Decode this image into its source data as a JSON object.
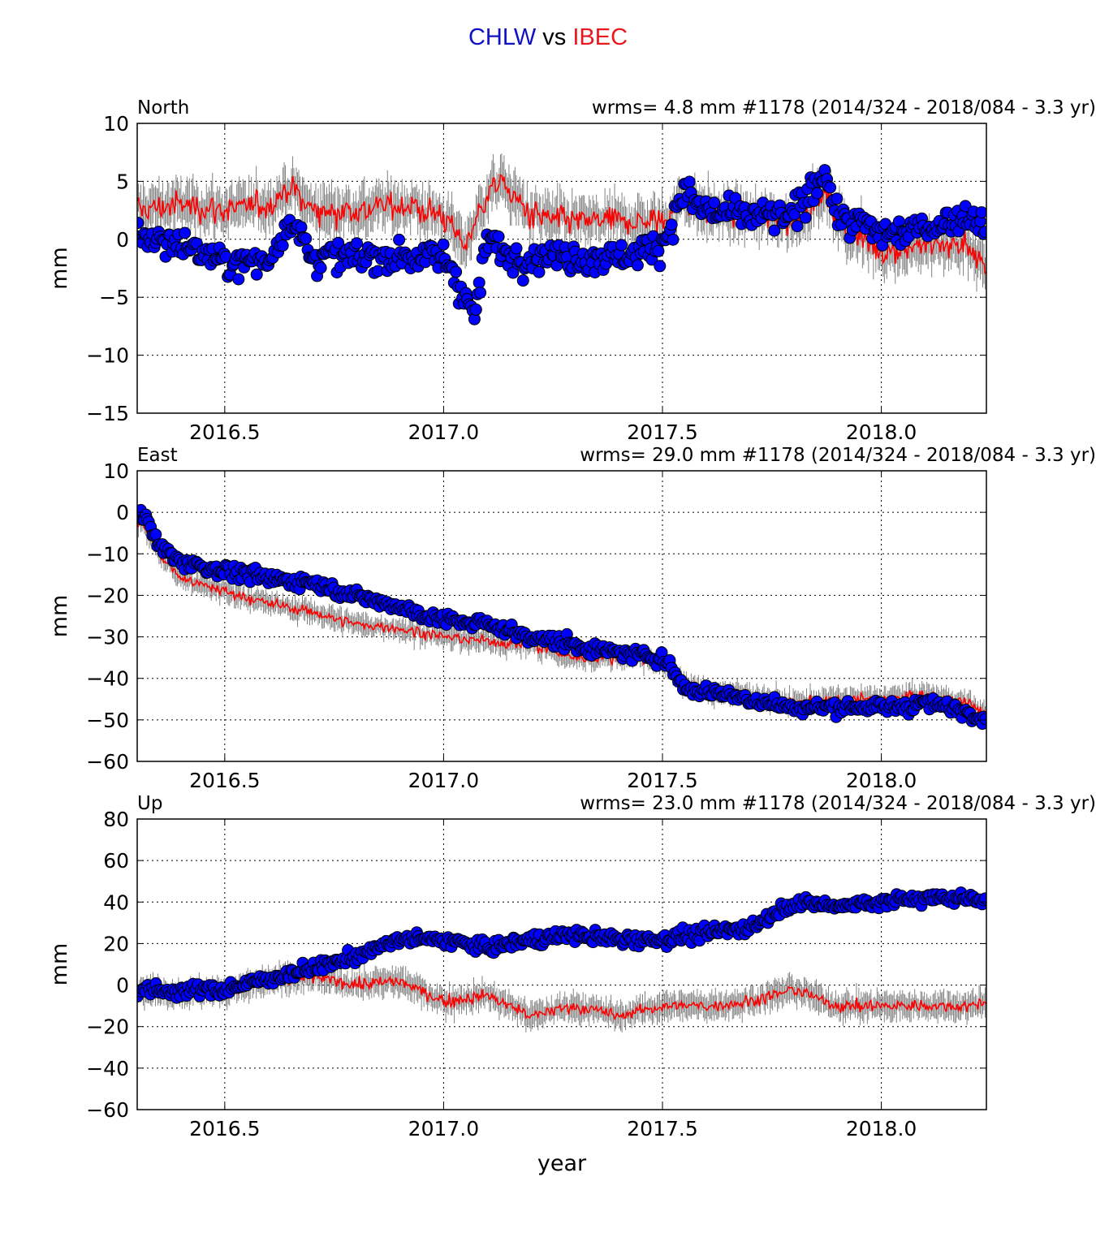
{
  "title": {
    "station1": "CHLW",
    "vs": "vs",
    "station2": "IBEC"
  },
  "colors": {
    "station1": "#0000ff",
    "station2": "#ff0000",
    "errorbar": "#808080",
    "edge": "#000000"
  },
  "chart_data": [
    {
      "type": "scatter",
      "panel": "North",
      "stats": "wrms=  4.8 mm  #1178 (2014/324 - 2018/084 -  3.3 yr)",
      "xlabel": "",
      "ylabel": "mm",
      "xlim": [
        2016.3,
        2018.24
      ],
      "ylim": [
        -15,
        10
      ],
      "xticks": [
        "2016.5",
        "2017.0",
        "2017.5",
        "2018.0"
      ],
      "yticks": [
        "10",
        "5",
        "0",
        "−5",
        "−10",
        "−15"
      ],
      "grid": true,
      "series": [
        {
          "x": [
            2016.3,
            2016.4,
            2016.5,
            2016.6,
            2016.65,
            2016.7,
            2016.8,
            2016.9,
            2017.0,
            2017.03,
            2017.05,
            2017.07,
            2017.1,
            2017.15,
            2017.2,
            2017.3,
            2017.4,
            2017.5,
            2017.55,
            2017.6,
            2017.7,
            2017.8,
            2017.87,
            2017.9,
            2018.0,
            2018.1,
            2018.2,
            2018.24
          ],
          "y": [
            0.5,
            -0.5,
            -2,
            -2,
            2,
            -1.5,
            -1.5,
            -1.5,
            -1.5,
            -3.5,
            -5,
            -6.5,
            0,
            -1.5,
            -1.5,
            -1.5,
            -1.5,
            -0.5,
            4,
            2.5,
            2,
            2,
            6,
            2,
            0.5,
            1,
            2,
            1
          ]
        },
        {
          "x": [
            2016.3,
            2016.4,
            2016.5,
            2016.6,
            2016.65,
            2016.7,
            2016.8,
            2016.9,
            2017.0,
            2017.05,
            2017.1,
            2017.13,
            2017.2,
            2017.3,
            2017.4,
            2017.5,
            2017.55,
            2017.6,
            2017.7,
            2017.8,
            2017.87,
            2017.9,
            2018.0,
            2018.1,
            2018.2,
            2018.24
          ],
          "y": [
            2.5,
            3,
            2.5,
            3,
            4.5,
            2.5,
            2.5,
            3,
            2,
            -0.5,
            4,
            5,
            2,
            1.5,
            1.5,
            1.5,
            3.5,
            2.5,
            2,
            1.5,
            4,
            1.5,
            -1,
            -0.5,
            -0.5,
            -3
          ]
        }
      ]
    },
    {
      "type": "scatter",
      "panel": "East",
      "stats": "wrms= 29.0 mm  #1178 (2014/324 - 2018/084 -  3.3 yr)",
      "xlabel": "",
      "ylabel": "mm",
      "xlim": [
        2016.3,
        2018.24
      ],
      "ylim": [
        -60,
        10
      ],
      "xticks": [
        "2016.5",
        "2017.0",
        "2017.5",
        "2018.0"
      ],
      "yticks": [
        "10",
        "0",
        "−10",
        "−20",
        "−30",
        "−40",
        "−50",
        "−60"
      ],
      "grid": true,
      "series": [
        {
          "x": [
            2016.31,
            2016.35,
            2016.4,
            2016.5,
            2016.6,
            2016.7,
            2016.8,
            2016.9,
            2017.0,
            2017.1,
            2017.2,
            2017.3,
            2017.4,
            2017.5,
            2017.56,
            2017.6,
            2017.7,
            2017.8,
            2017.9,
            2018.0,
            2018.1,
            2018.2,
            2018.24
          ],
          "y": [
            0,
            -8,
            -12,
            -14,
            -16,
            -17,
            -20,
            -23,
            -26,
            -27,
            -30,
            -32,
            -34,
            -35,
            -43,
            -43,
            -45,
            -47,
            -47,
            -47,
            -46,
            -48,
            -50
          ]
        },
        {
          "x": [
            2016.31,
            2016.35,
            2016.4,
            2016.5,
            2016.6,
            2016.7,
            2016.8,
            2016.9,
            2017.0,
            2017.1,
            2017.2,
            2017.3,
            2017.4,
            2017.5,
            2017.56,
            2017.6,
            2017.7,
            2017.8,
            2017.9,
            2018.0,
            2018.1,
            2018.2,
            2018.24
          ],
          "y": [
            -2,
            -10,
            -16,
            -19,
            -22,
            -24,
            -27,
            -28,
            -30,
            -31,
            -32,
            -35,
            -35,
            -36,
            -42,
            -43,
            -44,
            -46,
            -45,
            -45,
            -44,
            -46,
            -49
          ]
        }
      ]
    },
    {
      "type": "scatter",
      "panel": "Up",
      "stats": "wrms= 23.0 mm  #1178 (2014/324 - 2018/084 -  3.3 yr)",
      "xlabel": "year",
      "ylabel": "mm",
      "xlim": [
        2016.3,
        2018.24
      ],
      "ylim": [
        -60,
        80
      ],
      "xticks": [
        "2016.5",
        "2017.0",
        "2017.5",
        "2018.0"
      ],
      "yticks": [
        "80",
        "60",
        "40",
        "20",
        "0",
        "−20",
        "−40",
        "−60"
      ],
      "grid": true,
      "series": [
        {
          "x": [
            2016.3,
            2016.4,
            2016.5,
            2016.6,
            2016.7,
            2016.8,
            2016.9,
            2017.0,
            2017.1,
            2017.2,
            2017.3,
            2017.4,
            2017.5,
            2017.6,
            2017.7,
            2017.8,
            2017.9,
            2018.0,
            2018.1,
            2018.2,
            2018.24
          ],
          "y": [
            -2,
            -3,
            -2,
            3,
            8,
            14,
            22,
            22,
            18,
            22,
            24,
            22,
            22,
            25,
            28,
            40,
            38,
            40,
            42,
            42,
            42
          ]
        },
        {
          "x": [
            2016.3,
            2016.4,
            2016.5,
            2016.6,
            2016.7,
            2016.8,
            2016.9,
            2017.0,
            2017.1,
            2017.2,
            2017.3,
            2017.4,
            2017.5,
            2017.6,
            2017.7,
            2017.8,
            2017.9,
            2018.0,
            2018.1,
            2018.2,
            2018.24
          ],
          "y": [
            -2,
            -4,
            -3,
            2,
            4,
            0,
            2,
            -8,
            -5,
            -15,
            -10,
            -15,
            -10,
            -10,
            -8,
            -2,
            -10,
            -10,
            -10,
            -10,
            -8
          ]
        }
      ]
    }
  ]
}
